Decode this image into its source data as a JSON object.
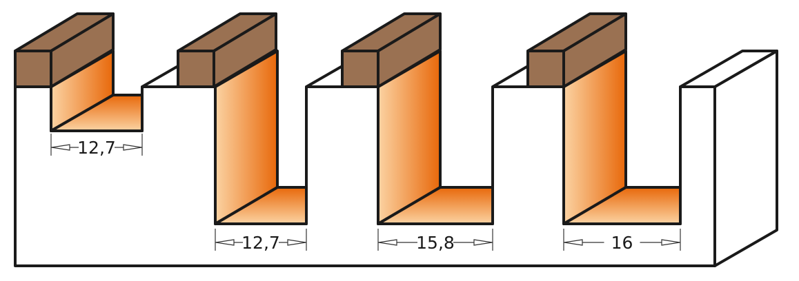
{
  "colors": {
    "wood": "#9a7152",
    "cut_dark": "#e8680a",
    "cut_light": "#fbd3a3",
    "outline": "#1a1a1a"
  },
  "dimensions": [
    {
      "label": "12,7"
    },
    {
      "label": "12,7"
    },
    {
      "label": "15,8"
    },
    {
      "label": "16"
    }
  ]
}
